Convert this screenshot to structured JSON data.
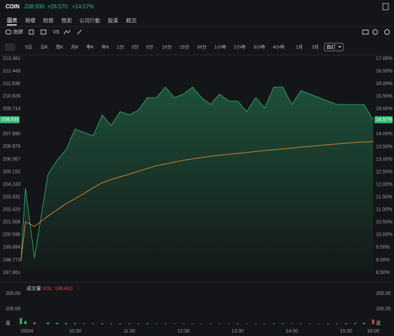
{
  "header": {
    "symbol": "COIN",
    "price": "208.930",
    "change": "+26.570",
    "change_pct": "+14.57%"
  },
  "tabs": [
    "圖表",
    "期權",
    "財務",
    "預測",
    "公司行動",
    "股東",
    "概況"
  ],
  "toolbar": {
    "indicators": "指標",
    "compare": "VS"
  },
  "intervals": [
    "5日",
    "日K",
    "周K",
    "月K",
    "季K",
    "年K",
    "1分",
    "3分",
    "5分",
    "10分",
    "15分",
    "30分",
    "1小時",
    "2小時",
    "3小時",
    "4小時",
    "1月",
    "3月",
    "自訂"
  ],
  "chart_data": [
    {
      "type": "line",
      "x": [
        "09:30",
        "09:35",
        "09:45",
        "10:00",
        "10:10",
        "10:20",
        "10:30",
        "10:40",
        "10:50",
        "11:00",
        "11:10",
        "11:20",
        "11:30",
        "11:40",
        "11:50",
        "12:00",
        "12:10",
        "12:20",
        "12:30",
        "12:40",
        "12:50",
        "13:00",
        "13:10",
        "13:20",
        "13:30",
        "13:40",
        "13:50",
        "14:00",
        "14:10",
        "14:20",
        "14:30",
        "14:40",
        "14:50",
        "15:00",
        "15:10",
        "15:20",
        "15:30",
        "15:40",
        "15:50",
        "16:00"
      ],
      "xlim": [
        "09:30",
        "16:00"
      ],
      "xticks": [
        {
          "value": "09:30",
          "label": "03/04"
        },
        "10:30",
        "11:30",
        "12:30",
        "13:30",
        "14:30",
        "15:30",
        "16:00"
      ],
      "ylim": [
        197.861,
        213.361
      ],
      "yticks": [
        213.361,
        212.449,
        211.538,
        210.626,
        209.714,
        {
          "value": 207.89,
          "label": "207.890"
        },
        206.979,
        206.067,
        205.155,
        204.243,
        203.331,
        {
          "value": 202.42,
          "label": "202.420"
        },
        201.508,
        200.596,
        199.684,
        198.772,
        197.861
      ],
      "y2lim": [
        8.5,
        17
      ],
      "y2ticks": [
        {
          "value": 17,
          "label": "17.00%"
        },
        {
          "value": 16.5,
          "label": "16.50%"
        },
        {
          "value": 16,
          "label": "16.00%"
        },
        {
          "value": 15.5,
          "label": "15.50%"
        },
        {
          "value": 15,
          "label": "15.00%"
        },
        {
          "value": 14,
          "label": "14.00%"
        },
        {
          "value": 13.5,
          "label": "13.50%"
        },
        {
          "value": 13,
          "label": "13.00%"
        },
        {
          "value": 12.5,
          "label": "12.50%"
        },
        {
          "value": 12,
          "label": "12.00%"
        },
        {
          "value": 11.5,
          "label": "11.50%"
        },
        {
          "value": 11,
          "label": "11.00%"
        },
        {
          "value": 10.5,
          "label": "10.50%"
        },
        {
          "value": 10,
          "label": "10.00%"
        },
        {
          "value": 9.5,
          "label": "9.50%"
        },
        {
          "value": 9,
          "label": "9.00%"
        },
        {
          "value": 8.5,
          "label": "8.50%"
        }
      ],
      "y_marker": {
        "value": 208.93,
        "label": "208.930"
      },
      "y2_marker": {
        "value": 14.57,
        "label": "14.57%"
      },
      "grid": false,
      "series": [
        {
          "color": "#2ebd76",
          "fill": true,
          "values": [
            198.67,
            203.97,
            198.92,
            204.98,
            205.99,
            206.75,
            208.26,
            208.01,
            207.76,
            209.27,
            208.51,
            209.52,
            209.27,
            209.62,
            210.53,
            210.53,
            211.29,
            210.53,
            210.79,
            211.29,
            210.53,
            210.03,
            210.79,
            210.28,
            210.28,
            209.52,
            210.53,
            209.78,
            211.29,
            211.29,
            210.03,
            211.04,
            210.79,
            210.53,
            210.28,
            210.03,
            210.03,
            210.03,
            210.03,
            208.93
          ]
        },
        {
          "color": "#d9822b",
          "fill": false,
          "values": [
            198.67,
            201.55,
            201.2,
            201.95,
            202.4,
            202.85,
            203.21,
            203.6,
            204.0,
            204.37,
            204.6,
            204.8,
            204.98,
            205.2,
            205.4,
            205.59,
            205.72,
            205.86,
            205.99,
            206.09,
            206.19,
            206.29,
            206.36,
            206.43,
            206.49,
            206.56,
            206.63,
            206.7,
            206.76,
            206.82,
            206.88,
            206.95,
            207.0,
            207.06,
            207.12,
            207.18,
            207.24,
            207.28,
            207.32,
            207.35
          ]
        }
      ]
    },
    {
      "type": "bar",
      "title": "成交量",
      "annotation": "VOL: 195.810",
      "x": [
        "09:30",
        "09:35",
        "09:45",
        "10:00",
        "10:10",
        "10:20",
        "10:30",
        "10:40",
        "10:50",
        "11:00",
        "11:10",
        "11:20",
        "11:30",
        "11:40",
        "11:50",
        "12:00",
        "12:10",
        "12:20",
        "12:30",
        "12:40",
        "12:50",
        "13:00",
        "13:10",
        "13:20",
        "13:30",
        "13:40",
        "13:50",
        "14:00",
        "14:10",
        "14:20",
        "14:30",
        "14:40",
        "14:50",
        "15:00",
        "15:10",
        "15:20",
        "15:30",
        "15:40",
        "15:50",
        "16:00"
      ],
      "xlim": [
        "09:30",
        "16:00"
      ],
      "ylim": [
        0,
        200
      ],
      "yticks": [
        {
          "value": 200,
          "label": "200.00"
        },
        {
          "value": 100,
          "label": "100.00"
        },
        {
          "value": 0,
          "label": "萬"
        }
      ],
      "up_color": "#2ebd76",
      "down_color": "#e0464e",
      "values": [
        40,
        20,
        12,
        10,
        8,
        7,
        6,
        5,
        5,
        5,
        4,
        4,
        4,
        3,
        4,
        3,
        3,
        3,
        3,
        3,
        3,
        3,
        3,
        3,
        3,
        3,
        3,
        3,
        3,
        3,
        3,
        3,
        3,
        3,
        4,
        4,
        5,
        6,
        8,
        30
      ]
    }
  ]
}
